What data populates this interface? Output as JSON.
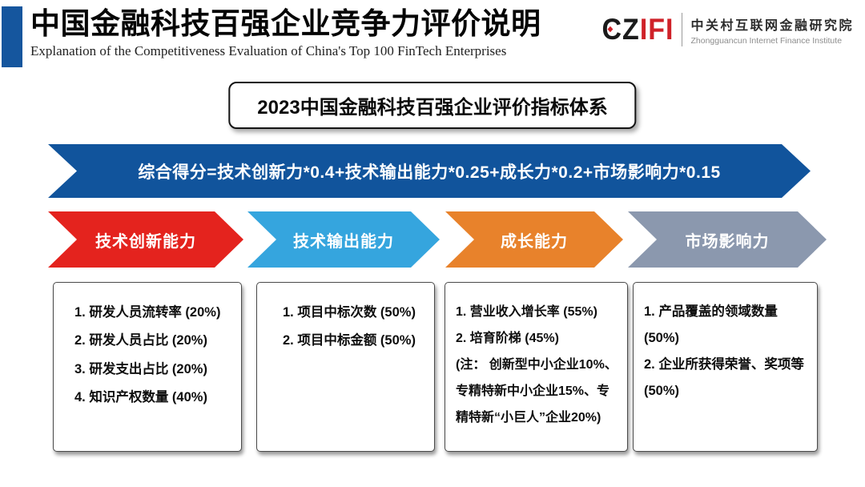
{
  "header": {
    "title": "中国金融科技百强企业竞争力评价说明",
    "subtitle": "Explanation of the Competitiveness Evaluation of China's Top 100 FinTech Enterprises",
    "logo": {
      "mark_black": "CZ",
      "mark_red": "IFI",
      "mark_accent_color": "#cf2128",
      "org_cn": "中关村互联网金融研究院",
      "org_en": "Zhongguancun Internet Finance Institute"
    }
  },
  "title_box": {
    "label": "2023中国金融科技百强企业评价指标体系"
  },
  "formula_banner": {
    "text": "综合得分=技术创新力*0.4+技术输出能力*0.25+成长力*0.2+市场影响力*0.15",
    "color": "#11549C"
  },
  "accent_bar_color": "#15569E",
  "categories": [
    {
      "label": "技术创新能力",
      "color": "#E4231E",
      "items": [
        "1. 研发人员流转率 (20%)",
        "2. 研发人员占比 (20%)",
        "3. 研发支出占比 (20%)",
        "4. 知识产权数量 (40%)"
      ]
    },
    {
      "label": "技术输出能力",
      "color": "#35A5DE",
      "items": [
        "1. 项目中标次数 (50%)",
        "2. 项目中标金额 (50%)"
      ]
    },
    {
      "label": "成长能力",
      "color": "#E8822B",
      "items": [
        "1. 营业收入增长率 (55%)",
        "2. 培育阶梯 (45%)",
        "(注： 创新型中小企业10%、专精特新中小企业15%、专精特新“小巨人”企业20%)"
      ]
    },
    {
      "label": "市场影响力",
      "color": "#8B98AE",
      "items": [
        "1. 产品覆盖的领域数量 (50%)",
        "2. 企业所获得荣誉、奖项等 (50%)"
      ]
    }
  ]
}
